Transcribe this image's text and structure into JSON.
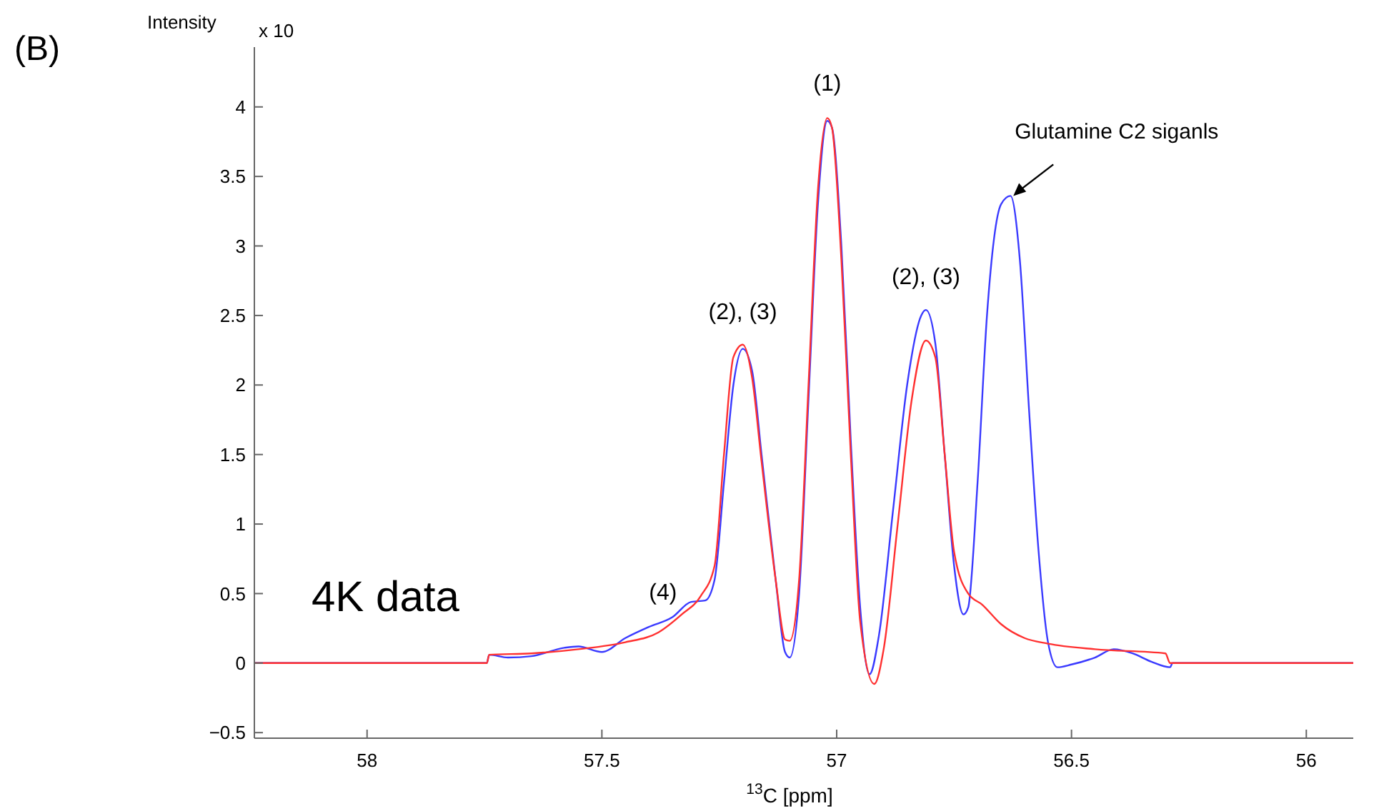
{
  "chart_data": {
    "type": "line",
    "xlabel": "$^{13}$C [ppm]",
    "ylabel": "Intensity",
    "xlim": [
      58.24,
      55.9
    ],
    "ylim": [
      -0.54,
      4.43
    ],
    "xticks": [
      58,
      57.5,
      57,
      56.5,
      56
    ],
    "yticks": [
      -0.5,
      0,
      0.5,
      1,
      1.5,
      2,
      2.5,
      3,
      3.5,
      4
    ],
    "grid": false,
    "marker": "none",
    "line_style": "solid",
    "series": [
      {
        "color": "#3a3aff",
        "x": [
          58.24,
          57.745,
          57.74,
          57.7,
          57.65,
          57.58,
          57.55,
          57.5,
          57.45,
          57.4,
          57.35,
          57.31,
          57.28,
          57.26,
          57.24,
          57.22,
          57.2,
          57.18,
          57.16,
          57.13,
          57.11,
          57.1,
          57.08,
          57.06,
          57.04,
          57.02,
          57.01,
          56.99,
          56.97,
          56.95,
          56.93,
          56.91,
          56.88,
          56.85,
          56.82,
          56.81,
          56.79,
          56.77,
          56.75,
          56.73,
          56.72,
          56.7,
          56.68,
          56.65,
          56.63,
          56.61,
          56.59,
          56.57,
          56.55,
          56.53,
          56.5,
          56.45,
          56.41,
          56.37,
          56.33,
          56.29,
          56.285,
          55.9
        ],
        "values": [
          0,
          0,
          0.06,
          0.04,
          0.05,
          0.11,
          0.12,
          0.08,
          0.18,
          0.26,
          0.33,
          0.44,
          0.45,
          0.6,
          1.3,
          2.0,
          2.26,
          2.1,
          1.5,
          0.6,
          0.08,
          0.04,
          0.5,
          1.9,
          3.3,
          3.9,
          3.85,
          3.0,
          1.6,
          0.4,
          -0.08,
          0.2,
          1.1,
          2.0,
          2.5,
          2.54,
          2.3,
          1.5,
          0.7,
          0.35,
          0.4,
          1.3,
          2.5,
          3.3,
          3.36,
          2.9,
          1.8,
          0.8,
          0.15,
          -0.03,
          -0.01,
          0.04,
          0.1,
          0.07,
          0.01,
          -0.03,
          0,
          0
        ]
      },
      {
        "color": "#ff3030",
        "x": [
          58.24,
          57.745,
          57.74,
          57.65,
          57.55,
          57.45,
          57.38,
          57.33,
          57.29,
          57.26,
          57.24,
          57.22,
          57.2,
          57.18,
          57.16,
          57.13,
          57.11,
          57.1,
          57.08,
          57.06,
          57.04,
          57.02,
          57.01,
          56.99,
          56.97,
          56.95,
          56.92,
          56.9,
          56.87,
          56.84,
          56.81,
          56.79,
          56.77,
          56.75,
          56.72,
          56.69,
          56.65,
          56.6,
          56.55,
          56.45,
          56.3,
          56.29,
          55.9
        ],
        "values": [
          0,
          0,
          0.06,
          0.07,
          0.1,
          0.15,
          0.22,
          0.35,
          0.48,
          0.7,
          1.5,
          2.2,
          2.29,
          2.05,
          1.45,
          0.6,
          0.17,
          0.16,
          0.6,
          2.0,
          3.4,
          3.92,
          3.85,
          2.9,
          1.5,
          0.3,
          -0.15,
          0.1,
          1.0,
          1.9,
          2.32,
          2.2,
          1.5,
          0.8,
          0.5,
          0.42,
          0.28,
          0.18,
          0.14,
          0.1,
          0.07,
          0,
          0
        ]
      }
    ],
    "annotations": [
      "(B)",
      "x 10",
      "4K data",
      {
        "text": "(1)",
        "x": 57.02,
        "y": 3.93
      },
      {
        "text": "(2), (3)",
        "x": 57.2,
        "y": 2.29
      },
      {
        "text": "(2), (3)",
        "x": 56.81,
        "y": 2.54
      },
      {
        "text": "(4)",
        "x": 57.37,
        "y": 0.27
      },
      {
        "text": "Glutamine C2 siganls",
        "x": 56.63,
        "y": 3.36
      }
    ]
  }
}
